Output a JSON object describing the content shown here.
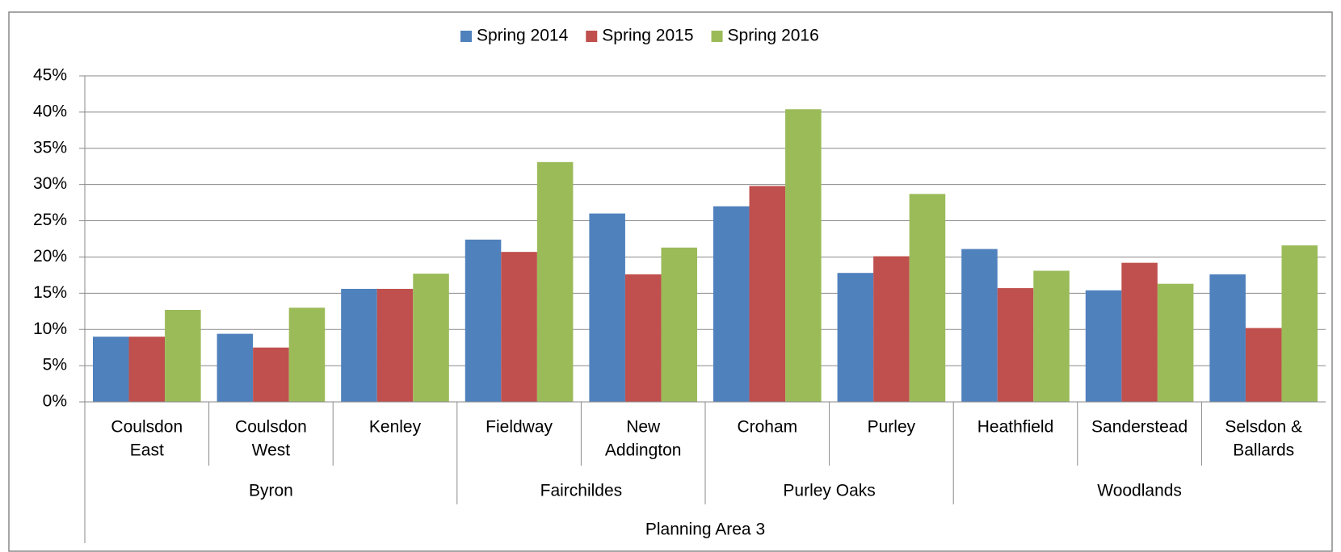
{
  "chart_data": {
    "type": "bar",
    "axis_title": "Planning Area 3",
    "groups": [
      {
        "name": "Byron",
        "categories": [
          [
            "Coulsdon",
            "East"
          ],
          [
            "Coulsdon",
            "West"
          ],
          [
            "Kenley"
          ]
        ]
      },
      {
        "name": "Fairchildes",
        "categories": [
          [
            "Fieldway"
          ],
          [
            "New",
            "Addington"
          ]
        ]
      },
      {
        "name": "Purley Oaks",
        "categories": [
          [
            "Croham"
          ],
          [
            "Purley"
          ]
        ]
      },
      {
        "name": "Woodlands",
        "categories": [
          [
            "Heathfield"
          ],
          [
            "Sanderstead"
          ],
          [
            "Selsdon &",
            "Ballards"
          ]
        ]
      }
    ],
    "series": [
      {
        "name": "Spring 2014",
        "color": "#4f81bd",
        "values": [
          9,
          9.4,
          15.6,
          22.4,
          26,
          27,
          17.8,
          21.1,
          15.4,
          17.6
        ]
      },
      {
        "name": "Spring 2015",
        "color": "#c0504d",
        "values": [
          9,
          7.5,
          15.6,
          20.7,
          17.6,
          29.8,
          20.1,
          15.7,
          19.2,
          10.2
        ]
      },
      {
        "name": "Spring 2016",
        "color": "#9bbb59",
        "values": [
          12.7,
          13,
          17.7,
          33.1,
          21.3,
          40.4,
          28.7,
          18.1,
          16.3,
          21.6
        ]
      }
    ],
    "ylim": [
      0,
      45
    ],
    "yticks": [
      {
        "value": 0,
        "label": "0%"
      },
      {
        "value": 5,
        "label": "5%"
      },
      {
        "value": 10,
        "label": "10%"
      },
      {
        "value": 15,
        "label": "15%"
      },
      {
        "value": 20,
        "label": "20%"
      },
      {
        "value": 25,
        "label": "25%"
      },
      {
        "value": 30,
        "label": "30%"
      },
      {
        "value": 35,
        "label": "35%"
      },
      {
        "value": 40,
        "label": "40%"
      },
      {
        "value": 45,
        "label": "45%"
      }
    ],
    "grid": true,
    "legend": "top"
  }
}
